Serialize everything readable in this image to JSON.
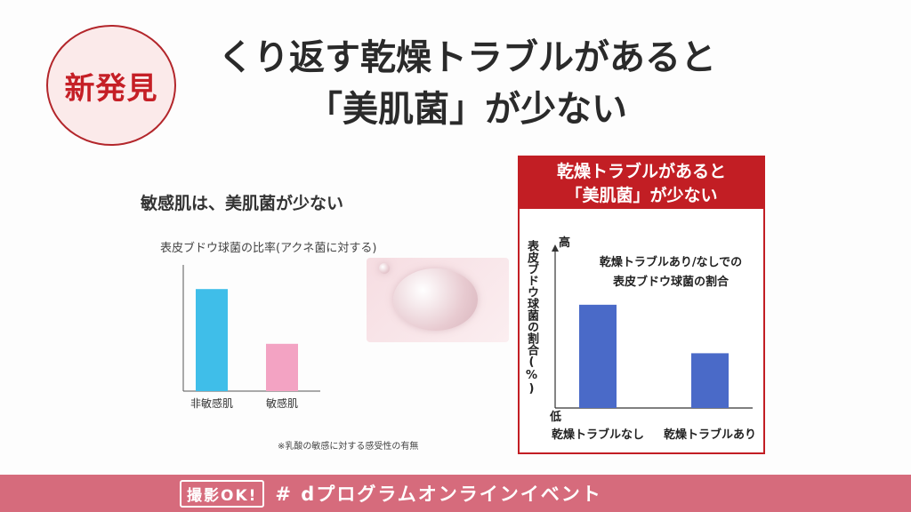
{
  "badge": {
    "text": "新発見"
  },
  "title": {
    "line1": "くり返す乾燥トラブルがあると",
    "line2": "「美肌菌」が少ない"
  },
  "left_chart": {
    "subtitle": "敏感肌は、美肌菌が少ない",
    "caption": "表皮ブドウ球菌の比率(アクネ菌に対する)",
    "note": "※乳酸の敏感に対する感受性の有無",
    "colors": {
      "bar1": "#3fbee9",
      "bar2": "#f3a3c3",
      "axis": "#555555"
    }
  },
  "right_panel": {
    "header_line1": "乾燥トラブルがあると",
    "header_line2": "「美肌菌」が少ない",
    "legend_line1": "乾燥トラブルあり/なしでの",
    "legend_line2": "表皮ブドウ球菌の割合",
    "ylabel": "表皮ブドウ球菌の割合(%)",
    "y_high": "高",
    "y_low": "低",
    "colors": {
      "bar": "#4a6ac8",
      "accent": "#c21e24"
    }
  },
  "chart_data": [
    {
      "type": "bar",
      "title": "表皮ブドウ球菌の比率(アクネ菌に対する)",
      "categories": [
        "非敏感肌",
        "敏感肌"
      ],
      "values": [
        0.82,
        0.38
      ],
      "ylim": [
        0,
        1
      ],
      "grid": false
    },
    {
      "type": "bar",
      "title": "乾燥トラブルあり/なしでの表皮ブドウ球菌の割合",
      "categories": [
        "乾燥トラブルなし",
        "乾燥トラブルあり"
      ],
      "values": [
        0.66,
        0.35
      ],
      "ylim": [
        0,
        1
      ],
      "ylabel": "表皮ブドウ球菌の割合(%)",
      "grid": false
    }
  ],
  "bottom_bar": {
    "photo_ok": "撮影OK!",
    "hashtag": "# dプログラムオンラインイベント"
  }
}
